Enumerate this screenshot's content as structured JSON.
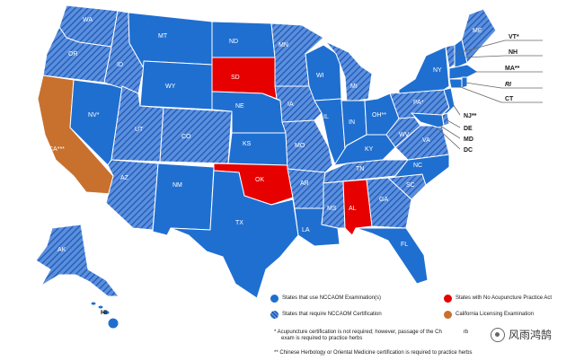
{
  "colors": {
    "nccaom_exam": "#1f6fd1",
    "nccaom_cert": "#1f6fd1",
    "no_act": "#e60000",
    "california": "#c8702d"
  },
  "states": {
    "wa": "WA",
    "or": "OR",
    "ca": "CA***",
    "nv": "NV*",
    "id": "ID",
    "mt": "MT",
    "wy": "WY",
    "ut": "UT",
    "az": "AZ",
    "co": "CO",
    "nm": "NM",
    "nd": "ND",
    "sd": "SD",
    "ne": "NE",
    "ks": "KS",
    "ok": "OK",
    "tx": "TX",
    "mn": "MN",
    "ia": "IA",
    "mo": "MO",
    "ar": "AR",
    "la": "LA",
    "wi": "WI",
    "il": "IL",
    "mi": "MI",
    "in": "IN",
    "oh": "OH**",
    "ky": "KY",
    "tn": "TN",
    "ms": "MS",
    "al": "AL",
    "ga": "GA",
    "fl": "FL",
    "sc": "SC",
    "nc": "NC",
    "va": "VA",
    "wv": "WV",
    "pa": "PA*",
    "ny": "NY",
    "me": "ME",
    "ak": "AK",
    "hi": "HI"
  },
  "callouts": {
    "vt": "VT*",
    "nh": "NH",
    "ma": "MA**",
    "ri": "RI",
    "ct": "CT",
    "nj": "NJ**",
    "de": "DE",
    "md": "MD",
    "dc": "DC"
  },
  "legend": {
    "exam": "States that use NCCAOM Examination(s)",
    "cert": "States that require NCCAOM Certification",
    "no_act": "States with No Acupuncture Practice Act",
    "california": "California Licensing Examination"
  },
  "notes": {
    "single_star_line1": "* Acupuncture certification is not required; however, passage of the Ch",
    "single_star_line1b": "rb",
    "single_star_line2": "exam is required to practice herbs",
    "double_star": "** Chinese Herbology or Oriental Medicine certification is required to practice herbs"
  },
  "watermark": "风雨鸿鹄"
}
